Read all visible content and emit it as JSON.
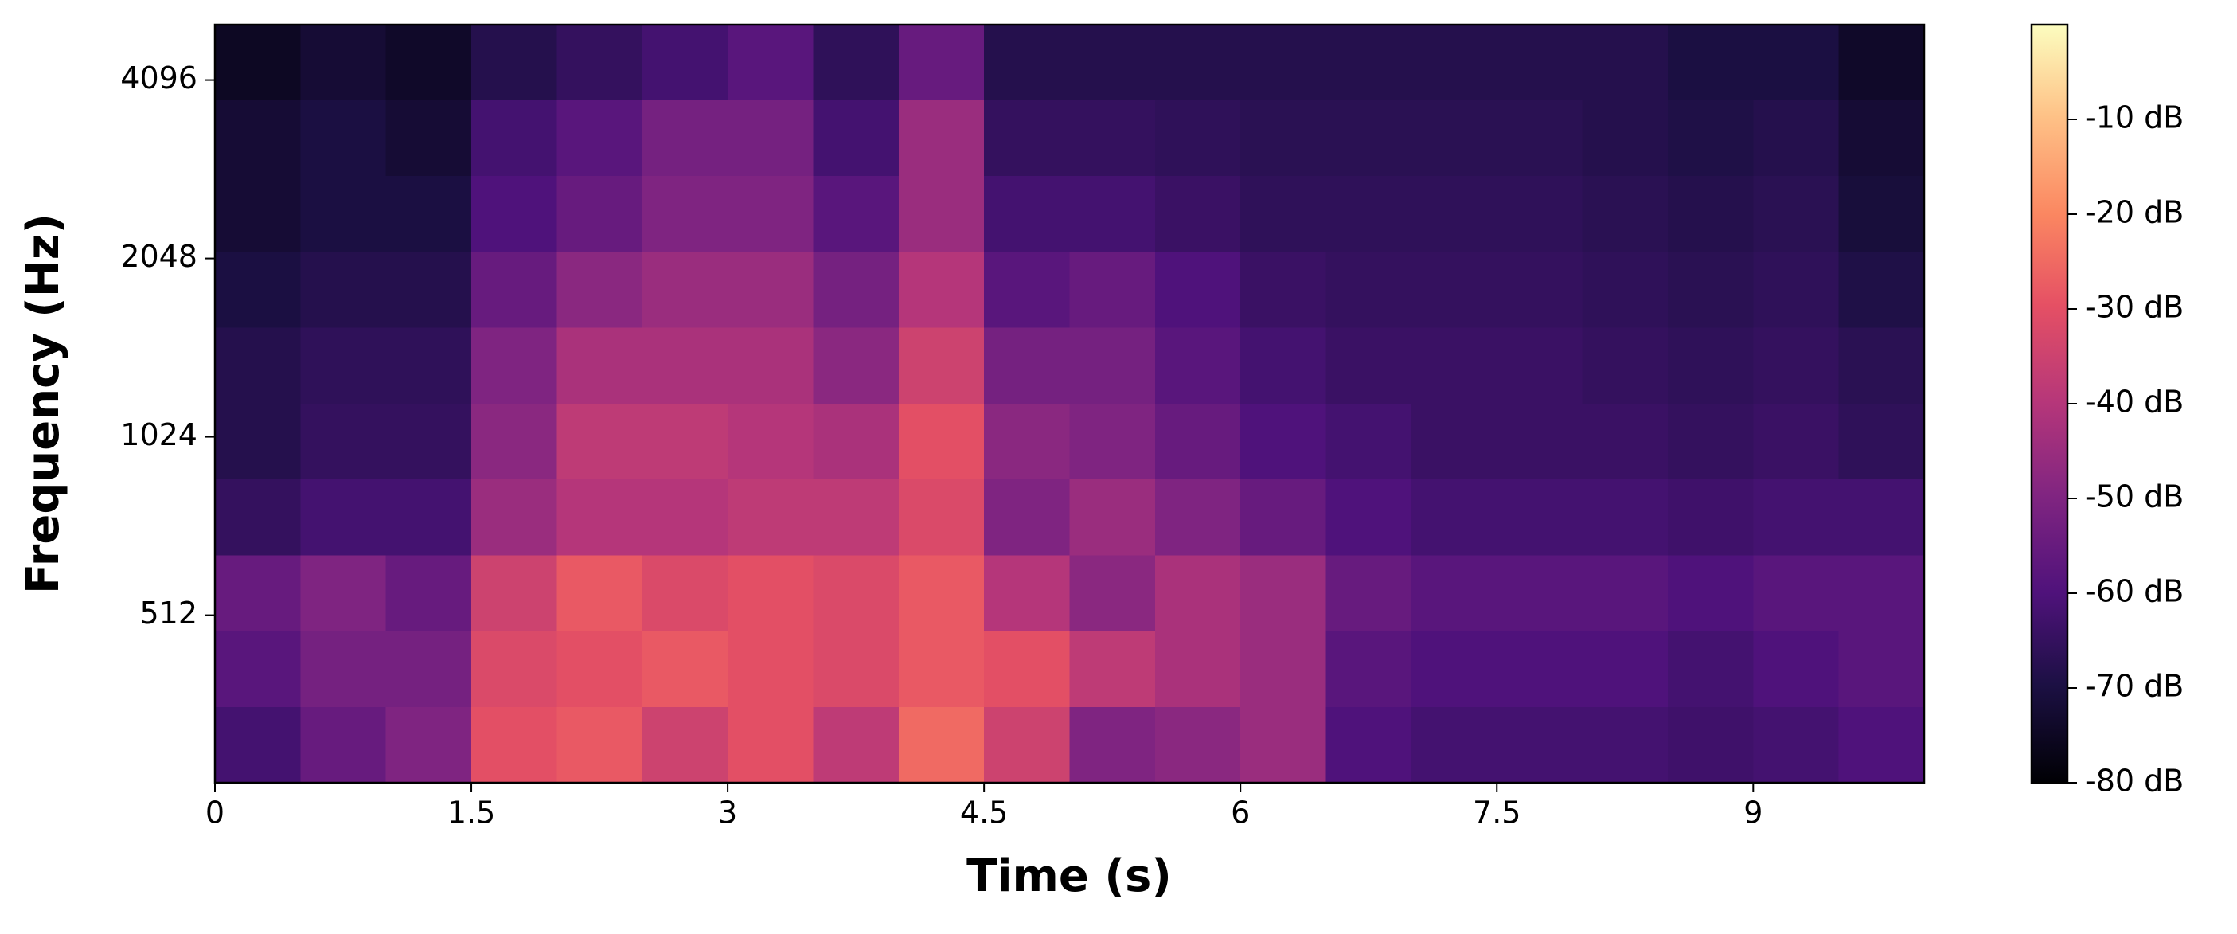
{
  "chart_data": {
    "type": "heatmap",
    "xlabel": "Time (s)",
    "ylabel": "Frequency (Hz)",
    "xlim": [
      0,
      10
    ],
    "xticks": [
      0,
      1.5,
      3,
      4.5,
      6,
      7.5,
      9
    ],
    "ylim": [
      267,
      5080
    ],
    "yscale": "log",
    "yticks": [
      512,
      1024,
      2048,
      4096
    ],
    "colormap": "magma",
    "clim": [
      -80,
      0
    ],
    "cticks": [
      {
        "value": -10,
        "label": "-10 dB"
      },
      {
        "value": -20,
        "label": "-20 dB"
      },
      {
        "value": -30,
        "label": "-30 dB"
      },
      {
        "value": -40,
        "label": "-40 dB"
      },
      {
        "value": -50,
        "label": "-50 dB"
      },
      {
        "value": -60,
        "label": "-60 dB"
      },
      {
        "value": -70,
        "label": "-70 dB"
      },
      {
        "value": -80,
        "label": "-80 dB"
      }
    ],
    "xbins": [
      0,
      0.5,
      1,
      1.5,
      2,
      2.5,
      3,
      3.5,
      4,
      4.5,
      5,
      5.5,
      6,
      6.5,
      7,
      7.5,
      8,
      8.5,
      9,
      9.5,
      10
    ],
    "ybins": [
      267,
      359,
      482,
      647,
      869,
      1167,
      1567,
      2104,
      2826,
      3795,
      5080
    ],
    "z": [
      [
        -62,
        -55,
        -50,
        -30,
        -28,
        -35,
        -30,
        -38,
        -25,
        -35,
        -50,
        -48,
        -45,
        -60,
        -62,
        -62,
        -62,
        -63,
        -62,
        -60
      ],
      [
        -58,
        -52,
        -52,
        -32,
        -30,
        -28,
        -30,
        -32,
        -28,
        -30,
        -38,
        -42,
        -45,
        -58,
        -60,
        -60,
        -60,
        -62,
        -60,
        -58
      ],
      [
        -55,
        -50,
        -55,
        -35,
        -28,
        -32,
        -30,
        -32,
        -28,
        -40,
        -48,
        -42,
        -45,
        -55,
        -58,
        -58,
        -58,
        -60,
        -58,
        -58
      ],
      [
        -65,
        -62,
        -62,
        -45,
        -40,
        -40,
        -38,
        -38,
        -32,
        -50,
        -45,
        -50,
        -55,
        -60,
        -62,
        -62,
        -62,
        -63,
        -62,
        -62
      ],
      [
        -68,
        -65,
        -65,
        -48,
        -38,
        -38,
        -40,
        -42,
        -30,
        -48,
        -50,
        -55,
        -60,
        -62,
        -64,
        -64,
        -64,
        -65,
        -64,
        -66
      ],
      [
        -68,
        -66,
        -66,
        -50,
        -42,
        -42,
        -42,
        -48,
        -35,
        -52,
        -52,
        -58,
        -62,
        -64,
        -64,
        -64,
        -65,
        -66,
        -65,
        -67
      ],
      [
        -70,
        -68,
        -68,
        -55,
        -48,
        -45,
        -45,
        -52,
        -40,
        -58,
        -55,
        -60,
        -64,
        -65,
        -65,
        -65,
        -66,
        -67,
        -66,
        -69
      ],
      [
        -72,
        -70,
        -70,
        -60,
        -55,
        -50,
        -50,
        -58,
        -45,
        -62,
        -62,
        -64,
        -66,
        -66,
        -66,
        -66,
        -67,
        -68,
        -67,
        -71
      ],
      [
        -72,
        -70,
        -72,
        -62,
        -58,
        -52,
        -52,
        -62,
        -45,
        -65,
        -65,
        -66,
        -67,
        -67,
        -67,
        -67,
        -68,
        -69,
        -68,
        -72
      ],
      [
        -75,
        -72,
        -74,
        -68,
        -65,
        -62,
        -58,
        -66,
        -55,
        -68,
        -68,
        -68,
        -68,
        -68,
        -68,
        -68,
        -68,
        -70,
        -70,
        -74
      ]
    ]
  }
}
